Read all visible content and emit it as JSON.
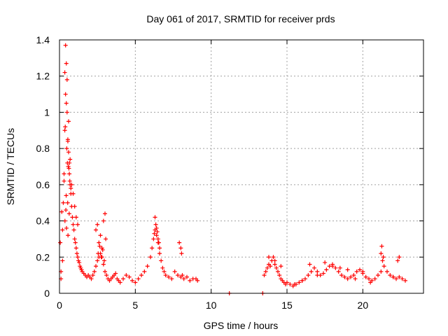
{
  "chart_data": {
    "type": "scatter",
    "title": "Day 061 of 2017, SRMTID for receiver prds",
    "xlabel": "GPS time / hours",
    "ylabel": "SRMTID / TECUs",
    "xlim": [
      0,
      24
    ],
    "ylim": [
      0,
      1.4
    ],
    "xticks": [
      "0",
      "5",
      "10",
      "15",
      "20"
    ],
    "yticks": [
      "0",
      "0.2",
      "0.4",
      "0.6",
      "0.8",
      "1",
      "1.2",
      "1.4"
    ],
    "grid": true,
    "marker": "plus",
    "color": "#ff0000",
    "series": [
      {
        "x": [
          0.05,
          0.1,
          0.15,
          0.2,
          0.25,
          0.3,
          0.35,
          0.4,
          0.45,
          0.5,
          0.55,
          0.6,
          0.65,
          0.7,
          0.75,
          0.8,
          0.85,
          0.9,
          0.95,
          1.0,
          1.05,
          1.1,
          1.15,
          1.2,
          1.25,
          1.3,
          1.35,
          1.4,
          1.45,
          1.5,
          1.6,
          1.7,
          1.8,
          1.9,
          2.0,
          2.1,
          2.2,
          2.3,
          2.4,
          2.5,
          2.6,
          2.7,
          2.8,
          2.9,
          3.0,
          3.1,
          3.2,
          3.3,
          3.4,
          3.5,
          3.6,
          3.7,
          3.8,
          3.9,
          4.0,
          4.2,
          4.4,
          4.6,
          4.8,
          5.0,
          5.2,
          5.4,
          5.6,
          5.8,
          6.0,
          6.1,
          6.2,
          6.3,
          6.4,
          6.5,
          6.6,
          6.7,
          6.8,
          6.9,
          7.0,
          7.2,
          7.4,
          7.6,
          7.8,
          8.0,
          8.1,
          8.2,
          8.4,
          8.6,
          8.8,
          9.0,
          9.1,
          0.1,
          0.2,
          0.3,
          0.4,
          0.5,
          0.6,
          0.7,
          0.8,
          0.9,
          1.0,
          1.1,
          1.2,
          0.35,
          0.45,
          0.55,
          0.65,
          0.75,
          0.42,
          0.52,
          0.62,
          0.38,
          0.48,
          0.58,
          0.68,
          0.44,
          0.54,
          0.64,
          0.36,
          0.46,
          0.56,
          2.4,
          2.5,
          2.6,
          2.7,
          2.8,
          2.9,
          3.0,
          3.05,
          2.55,
          2.65,
          2.75,
          2.85,
          2.95,
          6.3,
          6.35,
          6.4,
          6.45,
          6.5,
          6.55,
          6.25,
          6.6,
          7.9,
          8.0,
          8.05,
          11.2,
          13.4,
          13.5,
          13.6,
          13.7,
          13.8,
          13.9,
          14.0,
          14.1,
          14.2,
          14.3,
          14.4,
          14.5,
          14.6,
          14.7,
          14.8,
          14.9,
          15.0,
          15.2,
          15.4,
          15.6,
          15.8,
          16.0,
          16.2,
          16.4,
          16.6,
          16.8,
          17.0,
          17.2,
          17.4,
          17.6,
          17.8,
          18.0,
          18.2,
          18.4,
          18.6,
          18.8,
          19.0,
          19.2,
          19.4,
          19.6,
          19.8,
          20.0,
          20.2,
          20.4,
          20.6,
          20.8,
          21.0,
          21.2,
          21.3,
          21.4,
          21.6,
          21.8,
          22.0,
          22.2,
          22.4,
          22.6,
          22.8,
          13.8,
          14.2,
          14.6,
          16.5,
          17.5,
          18.0,
          18.5,
          19.0,
          20.0,
          21.2,
          21.25,
          21.35,
          22.3,
          22.4,
          15.5,
          16.0,
          17.0,
          19.5,
          20.5,
          22.0
        ],
        "y": [
          0.28,
          0.12,
          0.45,
          0.18,
          0.5,
          0.66,
          0.9,
          1.1,
          1.27,
          1.0,
          0.84,
          0.78,
          0.72,
          0.6,
          0.55,
          0.48,
          0.42,
          0.38,
          0.35,
          0.3,
          0.28,
          0.25,
          0.22,
          0.2,
          0.18,
          0.17,
          0.15,
          0.14,
          0.13,
          0.12,
          0.11,
          0.1,
          0.09,
          0.1,
          0.09,
          0.08,
          0.1,
          0.12,
          0.15,
          0.18,
          0.2,
          0.22,
          0.2,
          0.16,
          0.12,
          0.1,
          0.08,
          0.07,
          0.08,
          0.09,
          0.1,
          0.11,
          0.08,
          0.07,
          0.06,
          0.08,
          0.1,
          0.09,
          0.07,
          0.06,
          0.08,
          0.1,
          0.12,
          0.15,
          0.2,
          0.25,
          0.3,
          0.35,
          0.32,
          0.28,
          0.22,
          0.18,
          0.14,
          0.12,
          0.1,
          0.09,
          0.08,
          0.12,
          0.1,
          0.09,
          0.1,
          0.08,
          0.09,
          0.07,
          0.08,
          0.08,
          0.07,
          0.08,
          0.35,
          0.62,
          1.37,
          1.18,
          0.95,
          0.74,
          0.6,
          0.55,
          0.48,
          0.42,
          0.38,
          1.22,
          1.05,
          0.85,
          0.66,
          0.58,
          0.46,
          0.72,
          0.69,
          0.92,
          0.8,
          0.7,
          0.62,
          0.54,
          0.5,
          0.44,
          0.4,
          0.36,
          0.32,
          0.35,
          0.38,
          0.28,
          0.32,
          0.25,
          0.4,
          0.44,
          0.3,
          0.22,
          0.26,
          0.2,
          0.24,
          0.18,
          0.42,
          0.38,
          0.36,
          0.34,
          0.3,
          0.28,
          0.33,
          0.25,
          0.28,
          0.25,
          0.22,
          0.0,
          0.0,
          0.1,
          0.12,
          0.14,
          0.16,
          0.15,
          0.18,
          0.2,
          0.16,
          0.14,
          0.12,
          0.1,
          0.08,
          0.07,
          0.06,
          0.05,
          0.06,
          0.05,
          0.04,
          0.05,
          0.06,
          0.07,
          0.08,
          0.1,
          0.12,
          0.14,
          0.12,
          0.1,
          0.11,
          0.13,
          0.15,
          0.16,
          0.14,
          0.12,
          0.1,
          0.09,
          0.08,
          0.09,
          0.1,
          0.12,
          0.13,
          0.11,
          0.09,
          0.08,
          0.07,
          0.08,
          0.1,
          0.12,
          0.18,
          0.15,
          0.12,
          0.1,
          0.09,
          0.08,
          0.09,
          0.08,
          0.07,
          0.2,
          0.18,
          0.15,
          0.16,
          0.17,
          0.15,
          0.14,
          0.13,
          0.12,
          0.22,
          0.26,
          0.2,
          0.18,
          0.2,
          0.05,
          0.07,
          0.1,
          0.08,
          0.06,
          0.09
        ]
      }
    ]
  }
}
